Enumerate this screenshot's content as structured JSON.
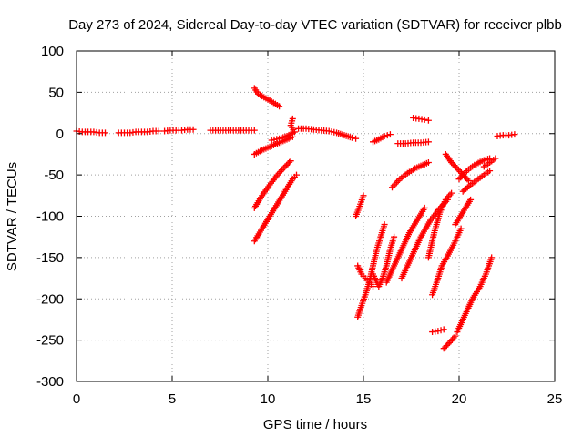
{
  "chart_data": {
    "type": "scatter",
    "title": "Day 273 of 2024, Sidereal Day-to-day VTEC variation (SDTVAR) for receiver plbb",
    "xlabel": "GPS time / hours",
    "ylabel": "SDTVAR / TECUs",
    "xlim": [
      0,
      25
    ],
    "ylim": [
      -300,
      100
    ],
    "xticks": [
      0,
      5,
      10,
      15,
      20,
      25
    ],
    "xtick_labels": [
      "0",
      "5",
      "10",
      "15",
      "20",
      "25"
    ],
    "yticks": [
      100,
      50,
      0,
      -50,
      -100,
      -150,
      -200,
      -250,
      -300
    ],
    "ytick_labels": [
      "100",
      "50",
      "0",
      "-50",
      "-100",
      "-150",
      "-200",
      "-250",
      "-300"
    ],
    "grid": true,
    "marker": "+",
    "color": "#ff0000",
    "series": [
      {
        "name": "seg1",
        "points": [
          [
            0,
            3
          ],
          [
            0.3,
            2
          ],
          [
            0.6,
            2
          ],
          [
            0.9,
            2
          ],
          [
            1.2,
            1
          ],
          [
            1.5,
            1
          ]
        ]
      },
      {
        "name": "seg2",
        "points": [
          [
            2.2,
            1
          ],
          [
            2.5,
            1
          ],
          [
            2.8,
            1
          ],
          [
            3.1,
            2
          ],
          [
            3.4,
            2
          ],
          [
            3.7,
            2
          ],
          [
            4.0,
            3
          ],
          [
            4.3,
            3
          ]
        ]
      },
      {
        "name": "seg3",
        "points": [
          [
            4.6,
            3
          ],
          [
            4.9,
            4
          ],
          [
            5.2,
            4
          ],
          [
            5.5,
            4
          ],
          [
            5.8,
            5
          ],
          [
            6.1,
            5
          ]
        ]
      },
      {
        "name": "seg4",
        "points": [
          [
            7.0,
            4
          ],
          [
            7.4,
            4
          ],
          [
            7.8,
            4
          ],
          [
            8.2,
            4
          ],
          [
            8.6,
            4
          ],
          [
            9.0,
            4
          ],
          [
            9.3,
            4
          ]
        ]
      },
      {
        "name": "seg5",
        "points": [
          [
            9.3,
            55
          ],
          [
            9.5,
            48
          ],
          [
            9.8,
            44
          ],
          [
            10.1,
            40
          ],
          [
            10.4,
            36
          ],
          [
            10.6,
            33
          ]
        ]
      },
      {
        "name": "seg6",
        "points": [
          [
            9.3,
            -25
          ],
          [
            9.7,
            -20
          ],
          [
            10.1,
            -16
          ],
          [
            10.5,
            -12
          ],
          [
            10.9,
            -8
          ],
          [
            11.3,
            -4
          ]
        ]
      },
      {
        "name": "seg7",
        "points": [
          [
            9.3,
            -90
          ],
          [
            9.7,
            -75
          ],
          [
            10.1,
            -62
          ],
          [
            10.5,
            -50
          ],
          [
            10.9,
            -40
          ],
          [
            11.2,
            -33
          ]
        ]
      },
      {
        "name": "seg8",
        "points": [
          [
            9.3,
            -130
          ],
          [
            9.7,
            -115
          ],
          [
            10.1,
            -100
          ],
          [
            10.5,
            -85
          ],
          [
            10.9,
            -70
          ],
          [
            11.3,
            -55
          ],
          [
            11.5,
            -50
          ]
        ]
      },
      {
        "name": "seg9",
        "points": [
          [
            10.2,
            -8
          ],
          [
            10.6,
            -6
          ],
          [
            11.0,
            -3
          ],
          [
            11.4,
            2
          ],
          [
            11.2,
            10
          ],
          [
            11.3,
            18
          ]
        ]
      },
      {
        "name": "seg10",
        "points": [
          [
            11.6,
            6
          ],
          [
            12.0,
            6
          ],
          [
            12.4,
            5
          ],
          [
            12.8,
            4
          ],
          [
            13.2,
            3
          ],
          [
            13.6,
            1
          ],
          [
            14.0,
            -2
          ],
          [
            14.4,
            -5
          ],
          [
            14.6,
            -6
          ]
        ]
      },
      {
        "name": "seg11",
        "points": [
          [
            14.7,
            -222
          ],
          [
            14.9,
            -208
          ],
          [
            15.1,
            -195
          ],
          [
            15.3,
            -180
          ],
          [
            15.5,
            -160
          ],
          [
            15.7,
            -140
          ],
          [
            15.9,
            -125
          ],
          [
            16.1,
            -110
          ]
        ]
      },
      {
        "name": "seg12",
        "points": [
          [
            14.6,
            -100
          ],
          [
            14.8,
            -88
          ],
          [
            15.0,
            -75
          ],
          [
            14.7,
            -160
          ],
          [
            14.9,
            -170
          ],
          [
            15.1,
            -175
          ],
          [
            15.3,
            -180
          ],
          [
            15.5,
            -185
          ]
        ]
      },
      {
        "name": "seg13",
        "points": [
          [
            15.5,
            -170
          ],
          [
            15.8,
            -185
          ],
          [
            16.0,
            -175
          ],
          [
            16.2,
            -160
          ],
          [
            16.4,
            -140
          ],
          [
            16.6,
            -125
          ]
        ]
      },
      {
        "name": "seg14",
        "points": [
          [
            15.5,
            -10
          ],
          [
            15.8,
            -7
          ],
          [
            16.1,
            -3
          ],
          [
            16.4,
            -1
          ]
        ]
      },
      {
        "name": "seg15",
        "points": [
          [
            16.2,
            -180
          ],
          [
            16.6,
            -160
          ],
          [
            17.0,
            -140
          ],
          [
            17.4,
            -120
          ],
          [
            17.8,
            -105
          ],
          [
            18.2,
            -90
          ]
        ]
      },
      {
        "name": "seg16",
        "points": [
          [
            16.5,
            -65
          ],
          [
            16.9,
            -55
          ],
          [
            17.3,
            -48
          ],
          [
            17.7,
            -42
          ],
          [
            18.1,
            -38
          ],
          [
            18.4,
            -35
          ]
        ]
      },
      {
        "name": "seg17",
        "points": [
          [
            16.8,
            -12
          ],
          [
            17.2,
            -12
          ],
          [
            17.6,
            -11
          ],
          [
            18.0,
            -11
          ],
          [
            18.4,
            -10
          ]
        ]
      },
      {
        "name": "seg18",
        "points": [
          [
            17.6,
            19
          ],
          [
            17.9,
            18
          ],
          [
            18.2,
            17
          ],
          [
            18.4,
            16
          ]
        ]
      },
      {
        "name": "seg19",
        "points": [
          [
            17.0,
            -175
          ],
          [
            17.5,
            -150
          ],
          [
            18.0,
            -125
          ],
          [
            18.5,
            -105
          ],
          [
            19.0,
            -90
          ],
          [
            19.4,
            -80
          ]
        ]
      },
      {
        "name": "seg20",
        "points": [
          [
            18.4,
            -150
          ],
          [
            18.7,
            -120
          ],
          [
            19.0,
            -95
          ],
          [
            19.3,
            -80
          ],
          [
            19.6,
            -72
          ]
        ]
      },
      {
        "name": "seg21",
        "points": [
          [
            18.6,
            -240
          ],
          [
            18.9,
            -239
          ],
          [
            19.2,
            -237
          ]
        ]
      },
      {
        "name": "seg22",
        "points": [
          [
            18.6,
            -195
          ],
          [
            18.9,
            -175
          ],
          [
            19.1,
            -160
          ],
          [
            19.4,
            -148
          ],
          [
            19.7,
            -135
          ],
          [
            19.9,
            -125
          ],
          [
            20.1,
            -115
          ]
        ]
      },
      {
        "name": "seg23",
        "points": [
          [
            19.2,
            -260
          ],
          [
            19.5,
            -253
          ],
          [
            19.8,
            -245
          ]
        ]
      },
      {
        "name": "seg24",
        "points": [
          [
            19.9,
            -240
          ],
          [
            20.3,
            -220
          ],
          [
            20.7,
            -200
          ],
          [
            21.1,
            -185
          ],
          [
            21.4,
            -170
          ],
          [
            21.7,
            -150
          ]
        ]
      },
      {
        "name": "seg25",
        "points": [
          [
            19.3,
            -25
          ],
          [
            19.6,
            -35
          ],
          [
            19.9,
            -42
          ],
          [
            20.2,
            -50
          ],
          [
            20.5,
            -57
          ]
        ]
      },
      {
        "name": "seg26",
        "points": [
          [
            20.0,
            -55
          ],
          [
            20.4,
            -45
          ],
          [
            20.8,
            -38
          ],
          [
            21.2,
            -33
          ],
          [
            21.6,
            -30
          ]
        ]
      },
      {
        "name": "seg27",
        "points": [
          [
            20.2,
            -70
          ],
          [
            20.6,
            -62
          ],
          [
            21.0,
            -55
          ],
          [
            21.3,
            -50
          ],
          [
            21.6,
            -45
          ]
        ]
      },
      {
        "name": "seg28",
        "points": [
          [
            19.8,
            -110
          ],
          [
            20.2,
            -95
          ],
          [
            20.6,
            -80
          ]
        ]
      },
      {
        "name": "seg29",
        "points": [
          [
            21.3,
            -40
          ],
          [
            21.6,
            -35
          ],
          [
            21.9,
            -30
          ]
        ]
      },
      {
        "name": "seg30",
        "points": [
          [
            22.0,
            -3
          ],
          [
            22.3,
            -2
          ],
          [
            22.6,
            -2
          ],
          [
            22.9,
            -1
          ]
        ]
      }
    ]
  }
}
